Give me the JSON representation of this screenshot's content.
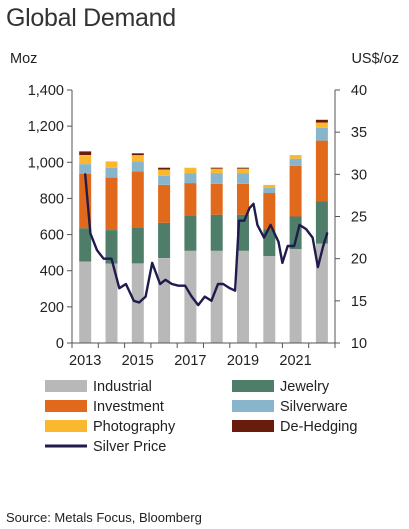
{
  "title": "Global Demand",
  "source": "Source: Metals Focus, Bloomberg",
  "chart_data": {
    "type": "bar",
    "stacked": true,
    "years": [
      2013,
      2014,
      2015,
      2016,
      2017,
      2018,
      2019,
      2020,
      2021,
      2022
    ],
    "x_tick_labels": [
      "2013",
      "2015",
      "2017",
      "2019",
      "2021"
    ],
    "left_axis": {
      "label": "Moz",
      "ylim": [
        0,
        1400
      ],
      "ticks": [
        "0",
        "200",
        "400",
        "600",
        "800",
        "1,000",
        "1,200",
        "1,400"
      ]
    },
    "right_axis": {
      "label": "US$/oz",
      "ylim": [
        10,
        40
      ],
      "ticks": [
        "10",
        "15",
        "20",
        "25",
        "30",
        "35",
        "40"
      ]
    },
    "series": [
      {
        "name": "Industrial",
        "color": "#b8b8b8",
        "values": [
          450,
          440,
          440,
          470,
          510,
          510,
          510,
          480,
          520,
          550
        ]
      },
      {
        "name": "Jewelry",
        "color": "#4e7d6a",
        "values": [
          185,
          185,
          200,
          195,
          195,
          200,
          200,
          150,
          180,
          235
        ]
      },
      {
        "name": "Investment",
        "color": "#e0691b",
        "values": [
          300,
          290,
          310,
          210,
          180,
          170,
          170,
          200,
          280,
          335
        ]
      },
      {
        "name": "Silverware",
        "color": "#88b4cc",
        "values": [
          55,
          55,
          55,
          50,
          55,
          60,
          60,
          30,
          40,
          70
        ]
      },
      {
        "name": "Photography",
        "color": "#f9b82e",
        "values": [
          50,
          35,
          35,
          35,
          30,
          25,
          25,
          15,
          20,
          30
        ]
      },
      {
        "name": "De-Hedging",
        "color": "#6a1c0c",
        "values": [
          20,
          0,
          10,
          10,
          0,
          5,
          5,
          0,
          0,
          15
        ]
      }
    ],
    "price_series": {
      "name": "Silver Price",
      "axis": "right",
      "color": "#1f1b4d",
      "x": [
        2013.0,
        2013.2,
        2013.45,
        2013.7,
        2014.0,
        2014.3,
        2014.55,
        2014.85,
        2015.05,
        2015.3,
        2015.55,
        2015.85,
        2016.05,
        2016.3,
        2016.55,
        2016.8,
        2017.05,
        2017.3,
        2017.55,
        2017.8,
        2018.05,
        2018.25,
        2018.5,
        2018.7,
        2018.85,
        2019.05,
        2019.25,
        2019.4,
        2019.55,
        2019.8,
        2020.05,
        2020.2,
        2020.35,
        2020.5,
        2020.7,
        2020.95,
        2021.15,
        2021.4,
        2021.65,
        2021.85,
        2022.05,
        2022.2
      ],
      "y": [
        30.0,
        23.0,
        21.0,
        20.0,
        20.0,
        16.5,
        17.0,
        15.0,
        14.8,
        15.5,
        19.5,
        17.0,
        17.5,
        17.0,
        16.8,
        16.8,
        15.5,
        14.5,
        15.5,
        15.0,
        17.0,
        17.0,
        16.5,
        16.2,
        24.5,
        24.5,
        26.0,
        26.5,
        24.0,
        22.5,
        24.0,
        23.0,
        22.0,
        19.5,
        21.5,
        21.5,
        24.0,
        23.5,
        22.5,
        19.0,
        21.5,
        23.0
      ]
    }
  },
  "legend": [
    {
      "label": "Industrial",
      "color": "#b8b8b8",
      "kind": "swatch"
    },
    {
      "label": "Jewelry",
      "color": "#4e7d6a",
      "kind": "swatch"
    },
    {
      "label": "Investment",
      "color": "#e0691b",
      "kind": "swatch"
    },
    {
      "label": "Silverware",
      "color": "#88b4cc",
      "kind": "swatch"
    },
    {
      "label": "Photography",
      "color": "#f9b82e",
      "kind": "swatch"
    },
    {
      "label": "De-Hedging",
      "color": "#6a1c0c",
      "kind": "swatch"
    },
    {
      "label": "Silver Price",
      "color": "#1f1b4d",
      "kind": "line"
    }
  ]
}
